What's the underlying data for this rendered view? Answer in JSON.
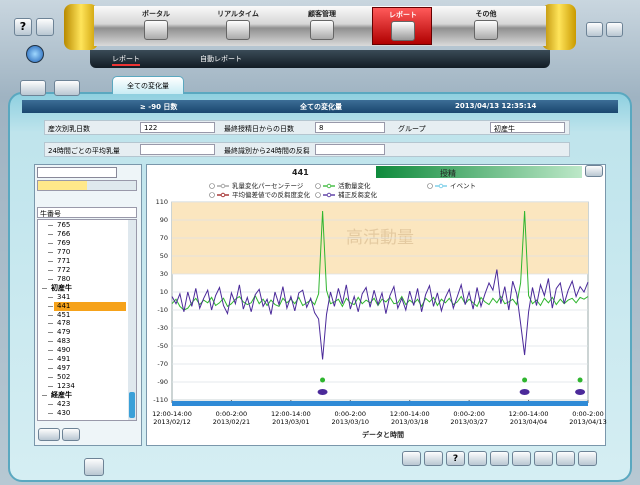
{
  "nav": {
    "tabs": [
      "ポータル",
      "リアルタイム",
      "顧客管理",
      "レポート",
      "その他"
    ],
    "active": 3,
    "subtabs": [
      "レポート",
      "自動レポート"
    ]
  },
  "buttons": {
    "help": "?"
  },
  "tab": "全ての変化量",
  "header": {
    "days": "≥ -90 日数",
    "title": "全ての変化量",
    "datetime": "2013/04/13 12:35:14"
  },
  "info": {
    "rows": [
      [
        {
          "label": "産次別乳日数",
          "value": "122"
        },
        {
          "label": "最終授精日からの日数",
          "value": "8"
        },
        {
          "label": "グループ",
          "value": "初産牛"
        }
      ],
      [
        {
          "label": "24時間ごとの平均乳量"
        },
        {
          "label": "最終識別から24時間の反芻"
        }
      ]
    ]
  },
  "sidebar": {
    "column": "牛番号",
    "items": [
      "765",
      "766",
      "769",
      "770",
      "771",
      "772",
      "780"
    ],
    "groups": [
      {
        "name": "初産牛",
        "items": [
          "341",
          "441",
          "451",
          "478",
          "479",
          "483",
          "490",
          "491",
          "497",
          "502",
          "1234"
        ]
      },
      {
        "name": "経産牛",
        "items": [
          "423",
          "430"
        ]
      }
    ],
    "selected": [
      0,
      1
    ]
  },
  "chart_data": {
    "type": "line",
    "title": "441",
    "status": "授精",
    "xlabel": "データと時間",
    "band": {
      "from": 30,
      "to": 110,
      "label": "高活動量",
      "color": "#fbe6bf"
    },
    "grid": true,
    "xlim": [
      0,
      105
    ],
    "ylim": [
      -110,
      110
    ],
    "yticks": [
      -110,
      -90,
      -70,
      -50,
      -30,
      -10,
      10,
      30,
      50,
      70,
      90,
      110
    ],
    "xticks": [
      {
        "value": 0,
        "label": "12:00-14:00\n2013/02/12"
      },
      {
        "value": 15,
        "label": "0:00-2:00\n2013/02/21"
      },
      {
        "value": 30,
        "label": "12:00-14:00\n2013/03/01"
      },
      {
        "value": 45,
        "label": "0:00-2:00\n2013/03/10"
      },
      {
        "value": 60,
        "label": "12:00-14:00\n2013/03/18"
      },
      {
        "value": 75,
        "label": "0:00-2:00\n2013/03/27"
      },
      {
        "value": 90,
        "label": "12:00-14:00\n2013/04/04"
      },
      {
        "value": 105,
        "label": "0:00-2:00\n2013/04/13"
      }
    ],
    "events": [
      38,
      89,
      103
    ],
    "series": [
      {
        "name": "乳量変化パーセンテージ",
        "color": "#9a9a9a"
      },
      {
        "name": "活動量変化",
        "color": "#2fb52f",
        "values": [
          -3,
          2,
          -6,
          -10,
          -8,
          -2,
          3,
          -4,
          1,
          -2,
          4,
          -5,
          -2,
          3,
          -6,
          -3,
          2,
          5,
          -1,
          -4,
          -2,
          6,
          -3,
          2,
          -5,
          1,
          -4,
          -6,
          3,
          -2,
          2,
          -3,
          4,
          -5,
          -2,
          1,
          -4,
          8,
          100,
          12,
          -3,
          -1,
          2,
          -6,
          3,
          -2,
          -4,
          4,
          -3,
          1,
          -2,
          3,
          -5,
          2,
          -1,
          4,
          -3,
          -2,
          5,
          -4,
          1,
          -3,
          2,
          -6,
          3,
          -1,
          4,
          -5,
          2,
          -2,
          3,
          -4,
          -1,
          5,
          -3,
          2,
          -2,
          -6,
          4,
          -1,
          -4,
          3,
          -2,
          5,
          -3,
          -1,
          2,
          -4,
          20,
          100,
          6,
          -3,
          1,
          -5,
          3,
          -2,
          4,
          -4,
          2,
          -3,
          1,
          3,
          -2,
          4,
          2,
          5
        ]
      },
      {
        "name": "イベント",
        "color": "#6cc9e6"
      },
      {
        "name": "平均偏差値での反芻度変化",
        "color": "#9b1b1b"
      },
      {
        "name": "補正反芻変化",
        "color": "#4b2a9a",
        "values": [
          5,
          -3,
          8,
          -12,
          10,
          -6,
          14,
          -8,
          3,
          12,
          -10,
          6,
          15,
          -5,
          -14,
          9,
          -3,
          18,
          -9,
          4,
          -12,
          7,
          13,
          -6,
          2,
          -15,
          10,
          -4,
          16,
          -8,
          5,
          -11,
          9,
          12,
          -7,
          3,
          -13,
          -20,
          -65,
          -15,
          10,
          -6,
          14,
          -3,
          18,
          -9,
          5,
          -12,
          8,
          15,
          -7,
          12,
          -4,
          9,
          -14,
          6,
          16,
          -8,
          3,
          -10,
          11,
          -5,
          14,
          -12,
          7,
          17,
          -6,
          9,
          -11,
          4,
          13,
          -8,
          5,
          18,
          -4,
          10,
          -9,
          15,
          -6,
          8,
          20,
          12,
          35,
          -3,
          16,
          -10,
          22,
          8,
          -25,
          -60,
          -12,
          15,
          -5,
          18,
          6,
          25,
          -8,
          14,
          20,
          -3,
          12,
          22,
          5,
          16,
          10,
          21
        ]
      }
    ]
  }
}
